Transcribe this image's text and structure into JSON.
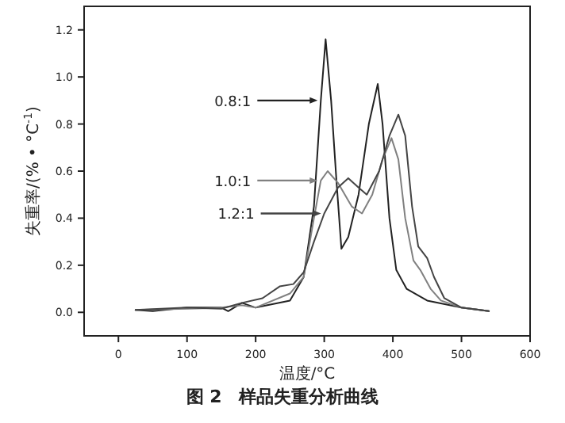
{
  "chart_data": {
    "type": "line",
    "xlabel": "温度/°C",
    "ylabel": "失重率/(% • °C$^{-1}$)",
    "xlim": [
      -50,
      600
    ],
    "ylim": [
      -0.1,
      1.3
    ],
    "xticks": [
      0,
      100,
      200,
      300,
      400,
      500,
      600
    ],
    "yticks": [
      {
        "value": 0,
        "label": "0.0"
      },
      {
        "value": 0.2,
        "label": "0.2"
      },
      {
        "value": 0.4,
        "label": "0.4"
      },
      {
        "value": 0.6,
        "label": "0.6"
      },
      {
        "value": 0.8,
        "label": "0.8"
      },
      {
        "value": 1,
        "label": "1.0"
      },
      {
        "value": 1.2,
        "label": "1.2"
      }
    ],
    "grid": false,
    "legend": "left",
    "marker": "none",
    "line_style": "solid",
    "series": [
      {
        "name": "0.8:1",
        "color": "#222222",
        "x": [
          25,
          50,
          100,
          150,
          160,
          180,
          200,
          250,
          270,
          285,
          295,
          302,
          310,
          318,
          325,
          335,
          350,
          365,
          378,
          385,
          395,
          405,
          420,
          450,
          500,
          540
        ],
        "values": [
          0.01,
          0.005,
          0.02,
          0.02,
          0.005,
          0.04,
          0.02,
          0.05,
          0.15,
          0.45,
          0.9,
          1.16,
          0.9,
          0.55,
          0.27,
          0.32,
          0.5,
          0.8,
          0.97,
          0.8,
          0.4,
          0.18,
          0.1,
          0.05,
          0.02,
          0.005
        ]
      },
      {
        "name": "1.0:1",
        "color": "#808080",
        "x": [
          25,
          100,
          150,
          180,
          200,
          250,
          270,
          285,
          295,
          305,
          320,
          340,
          355,
          370,
          385,
          398,
          408,
          418,
          430,
          440,
          455,
          470,
          500,
          540
        ],
        "values": [
          0.01,
          0.015,
          0.02,
          0.03,
          0.02,
          0.08,
          0.15,
          0.4,
          0.56,
          0.6,
          0.55,
          0.45,
          0.42,
          0.5,
          0.65,
          0.74,
          0.65,
          0.4,
          0.22,
          0.18,
          0.1,
          0.05,
          0.02,
          0.005
        ]
      },
      {
        "name": "1.2:1",
        "color": "#444444",
        "x": [
          25,
          100,
          150,
          180,
          210,
          235,
          255,
          270,
          285,
          300,
          320,
          335,
          350,
          362,
          380,
          395,
          408,
          418,
          428,
          437,
          450,
          460,
          475,
          500,
          540
        ],
        "values": [
          0.01,
          0.02,
          0.015,
          0.04,
          0.06,
          0.11,
          0.12,
          0.17,
          0.3,
          0.42,
          0.53,
          0.57,
          0.53,
          0.5,
          0.6,
          0.75,
          0.84,
          0.75,
          0.45,
          0.28,
          0.23,
          0.15,
          0.06,
          0.02,
          0.005
        ]
      }
    ],
    "annotations": [
      "图 2　样品失重分析曲线"
    ]
  }
}
